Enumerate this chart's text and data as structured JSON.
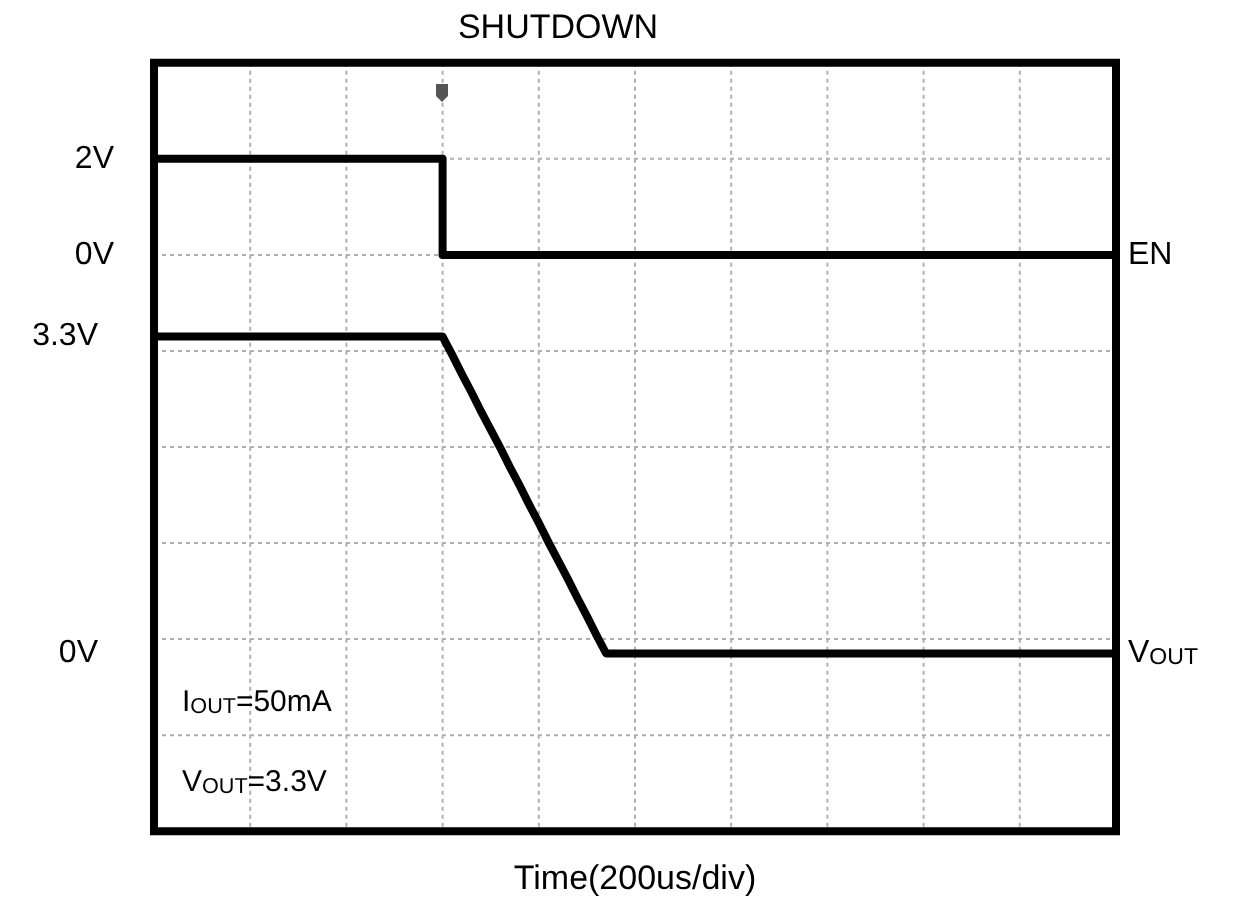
{
  "chart_data": {
    "type": "line",
    "title": "SHUTDOWN",
    "xlabel": "Time(200us/div)",
    "categories": [
      null,
      null,
      null,
      null,
      null,
      null,
      null,
      null,
      null,
      null,
      null,
      null,
      null,
      null,
      null,
      null,
      null,
      null,
      null,
      null,
      null,
      null,
      null,
      null,
      null,
      null,
      null,
      null,
      null,
      null,
      null,
      null,
      null,
      null,
      null,
      null,
      null,
      null,
      null,
      null,
      null,
      null,
      null,
      null,
      null,
      null,
      null,
      null,
      null,
      null,
      null,
      null,
      null,
      null,
      null,
      null,
      null,
      null,
      null,
      null,
      null,
      null,
      null,
      null,
      null,
      null,
      null,
      null,
      null,
      null,
      null,
      null,
      null,
      null,
      null,
      null,
      null,
      null,
      null,
      null,
      null,
      null,
      null,
      null,
      null,
      null,
      null,
      null,
      null,
      null,
      null,
      null,
      null,
      null,
      null,
      null,
      null,
      null,
      null,
      null,
      null
    ],
    "ylim": [
      -1.85,
      6.15
    ],
    "yticks": [
      {
        "value": 0,
        "label": "0V"
      },
      {
        "value": 3.3,
        "label": "3.3V"
      }
    ],
    "y2lim": [
      -12,
      4
    ],
    "y2ticks": [
      {
        "value": 0,
        "label": "0V"
      },
      {
        "value": 2,
        "label": "2V"
      }
    ],
    "series": [
      {
        "name": "EN",
        "color": "#000000",
        "axis": "y2",
        "type": "step",
        "values": [
          2,
          2,
          2,
          2,
          2,
          2,
          2,
          2,
          2,
          2,
          2,
          2,
          2,
          2,
          2,
          2,
          2,
          2,
          2,
          2,
          2,
          2,
          2,
          2,
          2,
          2,
          2,
          2,
          2,
          2,
          0,
          0,
          0,
          0,
          0,
          0,
          0,
          0,
          0,
          0,
          0,
          0,
          0,
          0,
          0,
          0,
          0,
          0,
          0,
          0,
          0,
          0,
          0,
          0,
          0,
          0,
          0,
          0,
          0,
          0,
          0,
          0,
          0,
          0,
          0,
          0,
          0,
          0,
          0,
          0,
          0,
          0,
          0,
          0,
          0,
          0,
          0,
          0,
          0,
          0,
          0,
          0,
          0,
          0,
          0,
          0,
          0,
          0,
          0,
          0,
          0,
          0,
          0,
          0,
          0,
          0,
          0,
          0,
          0,
          0,
          0
        ]
      },
      {
        "name": "V$_{OUT}$",
        "color": "#000000",
        "axis": "y",
        "values": [
          3.3,
          3.3,
          3.3,
          3.3,
          3.3,
          3.3,
          3.3,
          3.3,
          3.3,
          3.3,
          3.3,
          3.3,
          3.3,
          3.3,
          3.3,
          3.3,
          3.3,
          3.3,
          3.3,
          3.3,
          3.3,
          3.3,
          3.3,
          3.3,
          3.3,
          3.3,
          3.3,
          3.3,
          3.3,
          3.3,
          3.3,
          3.11,
          2.91,
          2.72,
          2.52,
          2.33,
          2.14,
          1.94,
          1.75,
          1.55,
          1.36,
          1.16,
          0.97,
          0.78,
          0.58,
          0.39,
          0.19,
          0,
          0,
          0,
          0,
          0,
          0,
          0,
          0,
          0,
          0,
          0,
          0,
          0,
          0,
          0,
          0,
          0,
          0,
          0,
          0,
          0,
          0,
          0,
          0,
          0,
          0,
          0,
          0,
          0,
          0,
          0,
          0,
          0,
          0,
          0,
          0,
          0,
          0,
          0,
          0,
          0,
          0,
          0,
          0,
          0,
          0,
          0,
          0,
          0,
          0,
          0,
          0,
          0,
          0
        ]
      }
    ],
    "annotations": [
      "I$_{OUT}$=50mA",
      "V$_{OUT}$=3.3V"
    ],
    "grid": true,
    "legend": false,
    "tick_labels": "y",
    "marker": "none",
    "line_style": "solid"
  }
}
